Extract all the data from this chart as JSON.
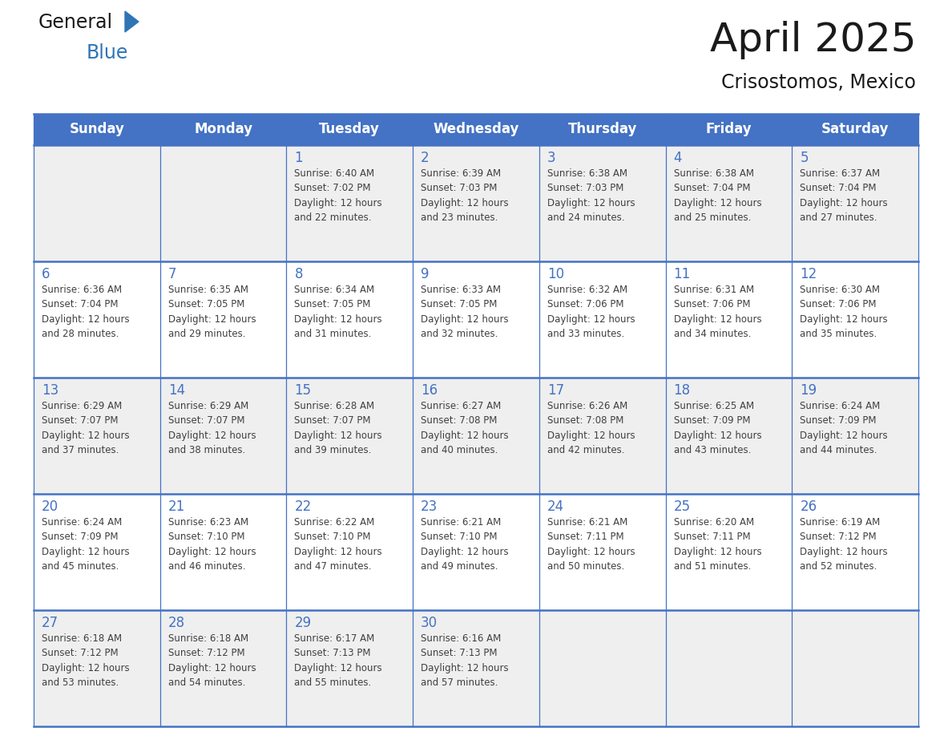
{
  "title": "April 2025",
  "subtitle": "Crisostomos, Mexico",
  "header_color": "#4472C4",
  "header_text_color": "#FFFFFF",
  "day_names": [
    "Sunday",
    "Monday",
    "Tuesday",
    "Wednesday",
    "Thursday",
    "Friday",
    "Saturday"
  ],
  "calendar_data": [
    [
      {
        "day": "",
        "sunrise": "",
        "sunset": "",
        "daylight": ""
      },
      {
        "day": "",
        "sunrise": "",
        "sunset": "",
        "daylight": ""
      },
      {
        "day": "1",
        "sunrise": "6:40 AM",
        "sunset": "7:02 PM",
        "daylight": "12 hours and 22 minutes."
      },
      {
        "day": "2",
        "sunrise": "6:39 AM",
        "sunset": "7:03 PM",
        "daylight": "12 hours and 23 minutes."
      },
      {
        "day": "3",
        "sunrise": "6:38 AM",
        "sunset": "7:03 PM",
        "daylight": "12 hours and 24 minutes."
      },
      {
        "day": "4",
        "sunrise": "6:38 AM",
        "sunset": "7:04 PM",
        "daylight": "12 hours and 25 minutes."
      },
      {
        "day": "5",
        "sunrise": "6:37 AM",
        "sunset": "7:04 PM",
        "daylight": "12 hours and 27 minutes."
      }
    ],
    [
      {
        "day": "6",
        "sunrise": "6:36 AM",
        "sunset": "7:04 PM",
        "daylight": "12 hours and 28 minutes."
      },
      {
        "day": "7",
        "sunrise": "6:35 AM",
        "sunset": "7:05 PM",
        "daylight": "12 hours and 29 minutes."
      },
      {
        "day": "8",
        "sunrise": "6:34 AM",
        "sunset": "7:05 PM",
        "daylight": "12 hours and 31 minutes."
      },
      {
        "day": "9",
        "sunrise": "6:33 AM",
        "sunset": "7:05 PM",
        "daylight": "12 hours and 32 minutes."
      },
      {
        "day": "10",
        "sunrise": "6:32 AM",
        "sunset": "7:06 PM",
        "daylight": "12 hours and 33 minutes."
      },
      {
        "day": "11",
        "sunrise": "6:31 AM",
        "sunset": "7:06 PM",
        "daylight": "12 hours and 34 minutes."
      },
      {
        "day": "12",
        "sunrise": "6:30 AM",
        "sunset": "7:06 PM",
        "daylight": "12 hours and 35 minutes."
      }
    ],
    [
      {
        "day": "13",
        "sunrise": "6:29 AM",
        "sunset": "7:07 PM",
        "daylight": "12 hours and 37 minutes."
      },
      {
        "day": "14",
        "sunrise": "6:29 AM",
        "sunset": "7:07 PM",
        "daylight": "12 hours and 38 minutes."
      },
      {
        "day": "15",
        "sunrise": "6:28 AM",
        "sunset": "7:07 PM",
        "daylight": "12 hours and 39 minutes."
      },
      {
        "day": "16",
        "sunrise": "6:27 AM",
        "sunset": "7:08 PM",
        "daylight": "12 hours and 40 minutes."
      },
      {
        "day": "17",
        "sunrise": "6:26 AM",
        "sunset": "7:08 PM",
        "daylight": "12 hours and 42 minutes."
      },
      {
        "day": "18",
        "sunrise": "6:25 AM",
        "sunset": "7:09 PM",
        "daylight": "12 hours and 43 minutes."
      },
      {
        "day": "19",
        "sunrise": "6:24 AM",
        "sunset": "7:09 PM",
        "daylight": "12 hours and 44 minutes."
      }
    ],
    [
      {
        "day": "20",
        "sunrise": "6:24 AM",
        "sunset": "7:09 PM",
        "daylight": "12 hours and 45 minutes."
      },
      {
        "day": "21",
        "sunrise": "6:23 AM",
        "sunset": "7:10 PM",
        "daylight": "12 hours and 46 minutes."
      },
      {
        "day": "22",
        "sunrise": "6:22 AM",
        "sunset": "7:10 PM",
        "daylight": "12 hours and 47 minutes."
      },
      {
        "day": "23",
        "sunrise": "6:21 AM",
        "sunset": "7:10 PM",
        "daylight": "12 hours and 49 minutes."
      },
      {
        "day": "24",
        "sunrise": "6:21 AM",
        "sunset": "7:11 PM",
        "daylight": "12 hours and 50 minutes."
      },
      {
        "day": "25",
        "sunrise": "6:20 AM",
        "sunset": "7:11 PM",
        "daylight": "12 hours and 51 minutes."
      },
      {
        "day": "26",
        "sunrise": "6:19 AM",
        "sunset": "7:12 PM",
        "daylight": "12 hours and 52 minutes."
      }
    ],
    [
      {
        "day": "27",
        "sunrise": "6:18 AM",
        "sunset": "7:12 PM",
        "daylight": "12 hours and 53 minutes."
      },
      {
        "day": "28",
        "sunrise": "6:18 AM",
        "sunset": "7:12 PM",
        "daylight": "12 hours and 54 minutes."
      },
      {
        "day": "29",
        "sunrise": "6:17 AM",
        "sunset": "7:13 PM",
        "daylight": "12 hours and 55 minutes."
      },
      {
        "day": "30",
        "sunrise": "6:16 AM",
        "sunset": "7:13 PM",
        "daylight": "12 hours and 57 minutes."
      },
      {
        "day": "",
        "sunrise": "",
        "sunset": "",
        "daylight": ""
      },
      {
        "day": "",
        "sunrise": "",
        "sunset": "",
        "daylight": ""
      },
      {
        "day": "",
        "sunrise": "",
        "sunset": "",
        "daylight": ""
      }
    ]
  ],
  "logo_color_general": "#1a1a1a",
  "logo_color_blue": "#2E75B6",
  "logo_triangle_color": "#2E75B6",
  "line_color": "#4472C4",
  "text_color": "#404040",
  "day_number_color": "#4472C4",
  "row_bg_even": "#EFEFEF",
  "row_bg_odd": "#FFFFFF",
  "title_fontsize": 36,
  "subtitle_fontsize": 17,
  "header_fontsize": 12,
  "day_num_fontsize": 12,
  "cell_text_fontsize": 8.5
}
